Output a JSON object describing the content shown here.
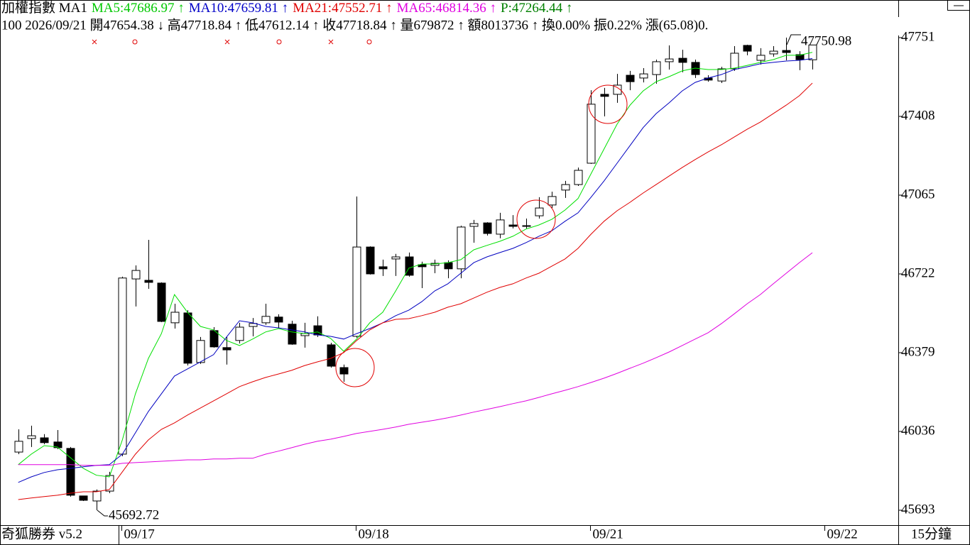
{
  "header": {
    "line1": [
      {
        "text": "加權指數 MA1",
        "color": "#000000"
      },
      {
        "text": "MA5:47686.97 ↑",
        "color": "#00c800"
      },
      {
        "text": "MA10:47659.81 ↑",
        "color": "#0000c8"
      },
      {
        "text": "MA21:47552.71 ↑",
        "color": "#e00000"
      },
      {
        "text": "MA65:46814.36 ↑",
        "color": "#e000e0"
      },
      {
        "text": "P:47264.44 ↑",
        "color": "#008000"
      }
    ],
    "line2": "100 2026/09/21 開47654.38 ↓ 高47718.84 ↑ 低47612.14 ↑ 收47718.84 ↑ 量679872 ↑ 額8013736 ↑ 換0.00% 振0.22% 漲(65.08)0."
  },
  "footer": {
    "app": "奇狐勝券 v5.2",
    "period": "15分鐘"
  },
  "chart_data": {
    "type": "candlestick",
    "xlim": [
      -1.4,
      67.6
    ],
    "xticks": [
      {
        "value": 8,
        "label": "09/17"
      },
      {
        "value": 26,
        "label": "09/18"
      },
      {
        "value": 44,
        "label": "09/21"
      },
      {
        "value": 62,
        "label": "09/22"
      }
    ],
    "ylim": [
      45627.82,
      47914.75
    ],
    "yticks": [
      {
        "value": 45692.72,
        "label": "45693"
      },
      {
        "value": 46035.76,
        "label": "46036"
      },
      {
        "value": 46378.8,
        "label": "46379"
      },
      {
        "value": 46721.84,
        "label": "46722"
      },
      {
        "value": 47064.88,
        "label": "47065"
      },
      {
        "value": 47407.92,
        "label": "47408"
      },
      {
        "value": 47750.96,
        "label": "47751"
      }
    ],
    "grid": false,
    "candles": {
      "open": [
        45946,
        46005,
        46008,
        45990,
        45962,
        45755,
        45733,
        45776,
        45937,
        46700,
        46694,
        46682,
        46509,
        46552,
        46336,
        46475,
        46401,
        46432,
        46493,
        46509,
        46534,
        46503,
        46453,
        46496,
        46413,
        46314,
        46450,
        46839,
        46753,
        46787,
        46796,
        46762,
        46759,
        46771,
        46744,
        46929,
        46944,
        46895,
        46935,
        46932,
        46975,
        47022,
        47087,
        47111,
        47204,
        47504,
        47504,
        47587,
        47575,
        47590,
        47646,
        47661,
        47643,
        47575,
        47562,
        47615,
        47717,
        47652,
        47680,
        47695,
        47677,
        47654.38
      ],
      "high": [
        46045,
        46061,
        46024,
        46042,
        45968,
        45755,
        45783,
        45860,
        46710,
        46759,
        46870,
        46685,
        46592,
        46564,
        46447,
        46490,
        46447,
        46509,
        46530,
        46592,
        46546,
        46518,
        46509,
        46537,
        46422,
        46327,
        47059,
        46842,
        46784,
        46809,
        46815,
        46775,
        46784,
        46781,
        46932,
        46957,
        46947,
        46988,
        46978,
        46963,
        47056,
        47080,
        47127,
        47185,
        47522,
        47532,
        47593,
        47606,
        47618,
        47655,
        47717,
        47698,
        47655,
        47587,
        47624,
        47714,
        47720,
        47705,
        47714,
        47750.98,
        47692,
        47718.84
      ],
      "low": [
        45937,
        45968,
        45980,
        45959,
        45752,
        45733,
        45692.72,
        45767,
        45928,
        46580,
        46657,
        46512,
        46484,
        46323,
        46330,
        46401,
        46327,
        46419,
        46450,
        46500,
        46487,
        46413,
        46401,
        46447,
        46314,
        46252,
        46444,
        46719,
        46713,
        46713,
        46710,
        46660,
        46725,
        46703,
        46703,
        46858,
        46889,
        46877,
        46920,
        46920,
        46963,
        47009,
        47053,
        47105,
        47201,
        47408,
        47467,
        47522,
        47556,
        47550,
        47612,
        47600,
        47575,
        47559,
        47553,
        47606,
        47674,
        47634,
        47668,
        47652,
        47609,
        47612.14
      ],
      "close": [
        45993,
        46017,
        45987,
        45965,
        45758,
        45736,
        45776,
        45844,
        46704,
        46737,
        46685,
        46515,
        46555,
        46333,
        46432,
        46404,
        46391,
        46490,
        46506,
        46537,
        46512,
        46416,
        46462,
        46456,
        46320,
        46286,
        46839,
        46722,
        46744,
        46796,
        46716,
        46753,
        46768,
        46744,
        46926,
        46941,
        46898,
        46957,
        46929,
        46929,
        47009,
        47059,
        47111,
        47173,
        47461,
        47495,
        47544,
        47559,
        47593,
        47646,
        47658,
        47643,
        47590,
        47566,
        47615,
        47683,
        47692,
        47674,
        47692,
        47686,
        47655,
        47718.84
      ]
    },
    "series": [
      {
        "color": "#00e000",
        "values": [
          45891,
          45937,
          45974,
          45968,
          45922,
          45875,
          45845,
          45838,
          45999,
          46200,
          46354,
          46462,
          46632,
          46555,
          46493,
          46478,
          46432,
          46410,
          46438,
          46469,
          46484,
          46469,
          46462,
          46469,
          46441,
          46385,
          46438,
          46509,
          46555,
          46648,
          46747,
          46765,
          46765,
          46771,
          46784,
          46827,
          46846,
          46864,
          46886,
          46917,
          46935,
          46960,
          47000,
          47050,
          47158,
          47266,
          47374,
          47457,
          47519,
          47559,
          47581,
          47606,
          47618,
          47612,
          47612,
          47618,
          47630,
          47643,
          47655,
          47674,
          47674,
          47686.97
        ]
      },
      {
        "color": "#0000c0",
        "values": [
          45814,
          45838,
          45857,
          45869,
          45875,
          45882,
          45888,
          45891,
          45937,
          46030,
          46123,
          46200,
          46277,
          46308,
          46339,
          46370,
          46447,
          46518,
          46509,
          46493,
          46487,
          46478,
          46469,
          46456,
          46450,
          46438,
          46462,
          46484,
          46509,
          46540,
          46564,
          46601,
          46648,
          46679,
          46725,
          46771,
          46796,
          46815,
          46833,
          46858,
          46886,
          46910,
          46951,
          46988,
          47056,
          47127,
          47204,
          47281,
          47359,
          47420,
          47467,
          47519,
          47556,
          47575,
          47590,
          47612,
          47624,
          47637,
          47643,
          47649,
          47652,
          47659.81
        ]
      },
      {
        "color": "#e00000",
        "values": [
          45739,
          45746,
          45752,
          45758,
          45767,
          45773,
          45773,
          45783,
          45860,
          45937,
          45999,
          46045,
          46073,
          46107,
          46138,
          46169,
          46200,
          46231,
          46252,
          46271,
          46286,
          46302,
          46323,
          46339,
          46354,
          46379,
          46432,
          46478,
          46509,
          46524,
          46527,
          46540,
          46555,
          46577,
          46592,
          46617,
          46642,
          46663,
          46679,
          46704,
          46725,
          46756,
          46787,
          46833,
          46895,
          46951,
          46997,
          47034,
          47074,
          47111,
          47148,
          47185,
          47220,
          47253,
          47284,
          47318,
          47352,
          47383,
          47420,
          47457,
          47498,
          47552.71
        ]
      },
      {
        "color": "#e000e0",
        "values": [
          45891,
          45891,
          45891,
          45891,
          45891,
          45888,
          45888,
          45888,
          45897,
          45900,
          45903,
          45906,
          45909,
          45912,
          45912,
          45916,
          45916,
          45919,
          45919,
          45937,
          45950,
          45965,
          45980,
          45993,
          46002,
          46014,
          46027,
          46036,
          46045,
          46055,
          46067,
          46076,
          46085,
          46095,
          46107,
          46120,
          46132,
          46144,
          46157,
          46169,
          46184,
          46200,
          46215,
          46231,
          46249,
          46268,
          46289,
          46311,
          46333,
          46357,
          46382,
          46410,
          46438,
          46466,
          46505,
          46548,
          46592,
          46632,
          46679,
          46725,
          46771,
          46814.36
        ]
      }
    ],
    "annotations": [
      "45692.72",
      "47750.98"
    ]
  }
}
